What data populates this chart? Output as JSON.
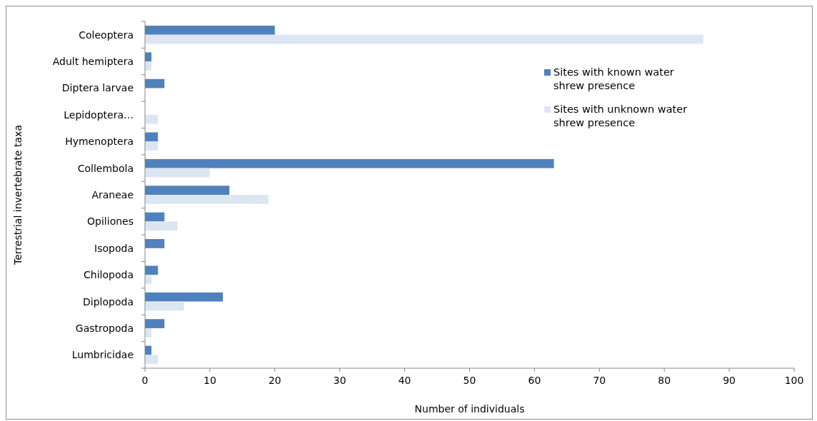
{
  "chart_data": {
    "type": "bar",
    "orientation": "horizontal",
    "xlabel": "Number of individuals",
    "ylabel": "Terrestrial invertebrate taxa",
    "categories": [
      "Coleoptera",
      "Adult hemiptera",
      "Diptera larvae",
      "Lepidoptera…",
      "Hymenoptera",
      "Collembola",
      "Araneae",
      "Opiliones",
      "Isopoda",
      "Chilopoda",
      "Diplopoda",
      "Gastropoda",
      "Lumbricidae"
    ],
    "series": [
      {
        "name": "Sites with known water shrew presence",
        "color": "#4f81bd",
        "values": [
          20,
          1,
          3,
          0,
          2,
          63,
          13,
          3,
          3,
          2,
          12,
          3,
          1
        ]
      },
      {
        "name": "Sites with unknown water shrew presence",
        "color": "#dce6f2",
        "values": [
          86,
          1,
          0,
          2,
          2,
          10,
          19,
          5,
          0,
          1,
          6,
          1,
          2
        ]
      }
    ],
    "xlim": [
      0,
      100
    ],
    "xticks": [
      0,
      10,
      20,
      30,
      40,
      50,
      60,
      70,
      80,
      90,
      100
    ],
    "grid": false,
    "legend": "top right"
  }
}
